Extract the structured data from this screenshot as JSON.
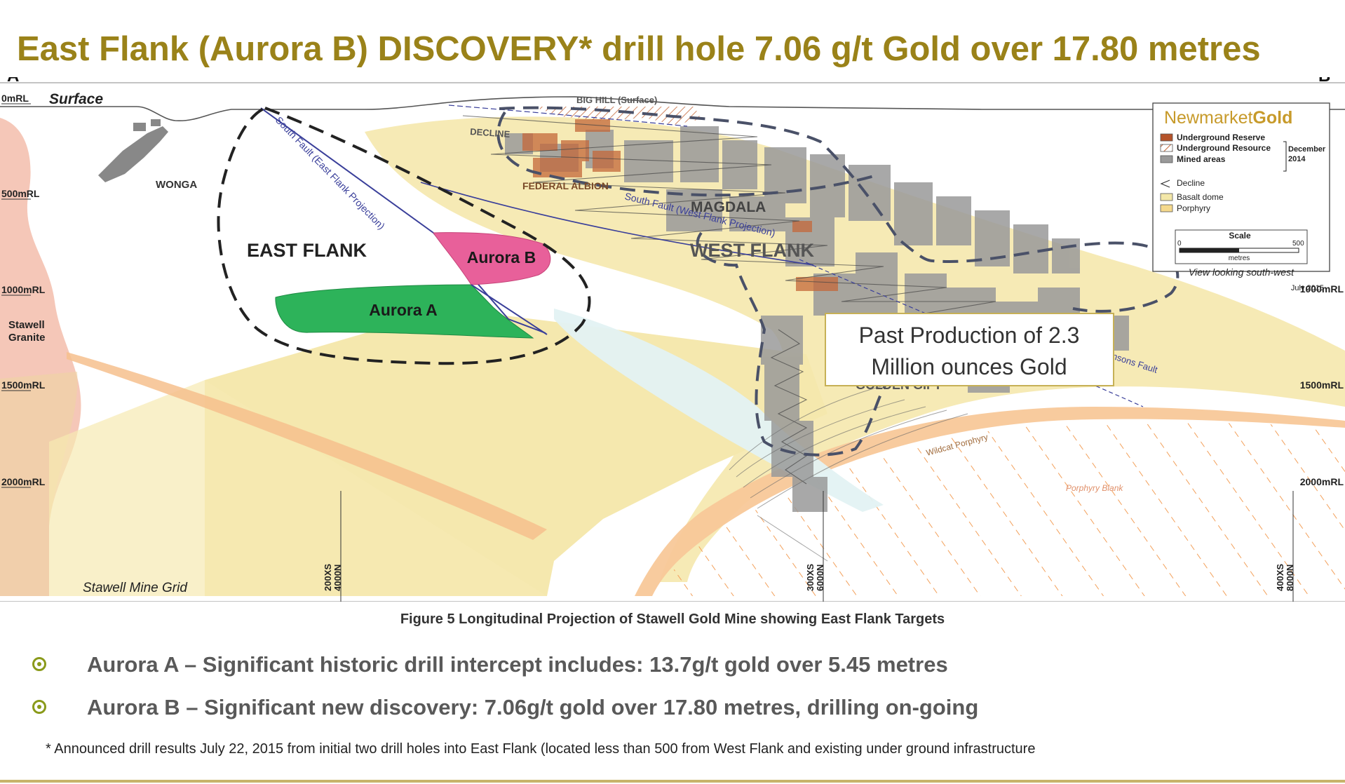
{
  "slide": {
    "title": "East Flank (Aurora B) DISCOVERY* drill hole 7.06 g/t Gold over 17.80 metres",
    "caption": "Figure 5   Longitudinal Projection of Stawell Gold Mine showing East Flank Targets",
    "bullets": [
      "Aurora A – Significant historic drill intercept includes: 13.7g/t gold over 5.45 metres",
      "Aurora B – Significant new discovery: 7.06g/t gold over 17.80 metres, drilling on-going"
    ],
    "footnote": "* Announced drill results July 22, 2015 from initial two drill holes into East Flank (located less than 500  from West Flank and existing under ground infrastructure"
  },
  "diagram": {
    "section_start": "A",
    "section_end": "B",
    "surface_label": "Surface",
    "grid_label": "Stawell Mine Grid",
    "rl_labels_left": [
      "0mRL",
      "500mRL",
      "1000mRL",
      "1500mRL",
      "2000mRL"
    ],
    "rl_labels_right": [
      "1000mRL",
      "1500mRL",
      "2000mRL"
    ],
    "section_ticks": [
      {
        "xs": "200XS",
        "n": "4000N"
      },
      {
        "xs": "300XS",
        "n": "6000N"
      },
      {
        "xs": "400XS",
        "n": "8000N"
      }
    ],
    "place_labels": {
      "wonga": "WONGA",
      "big_hill": "BIG HILL (Surface)",
      "decline": "DECLINE",
      "federal_albion": "FEDERAL ALBION",
      "magdala": "MAGDALA",
      "golden_gift": "GOLDEN GIFT",
      "stawell_granite": "Stawell Granite",
      "south_fault_east": "South Fault (East Flank Projection)",
      "south_fault_west": "South Fault (West Flank Projection)",
      "hutchinsons_fault": "Hutchinsons Fault",
      "wildcat_porphyry": "Wildcat Porphyry",
      "porphyry_blank": "Porphyry Blank"
    },
    "zones": {
      "east_flank": "EAST FLANK",
      "west_flank": "WEST FLANK",
      "aurora_a": "Aurora A",
      "aurora_b": "Aurora B"
    },
    "callout": "Past Production of 2.3 Million ounces Gold",
    "colors": {
      "aurora_a": "#2db35a",
      "aurora_b": "#e8609a",
      "basalt_dome": "#f3e7a8",
      "porphyry": "#f5d98c",
      "granite": "#f4c4b4",
      "mined": "#9a9a9a",
      "reserve": "#b5532a",
      "brand_gold": "#c79a2a",
      "fault": "#3a3f9a"
    }
  },
  "legend": {
    "brand_prefix": "Newmarket",
    "brand_suffix": "Gold",
    "items": [
      "Underground Reserve",
      "Underground Resource",
      "Mined areas",
      "Decline",
      "Basalt dome",
      "Porphyry"
    ],
    "date_label": "December 2014",
    "scale_title": "Scale",
    "scale_min": "0",
    "scale_max": "500",
    "scale_unit": "metres",
    "view_label": "View looking south-west",
    "issue_date": "July 2015"
  }
}
